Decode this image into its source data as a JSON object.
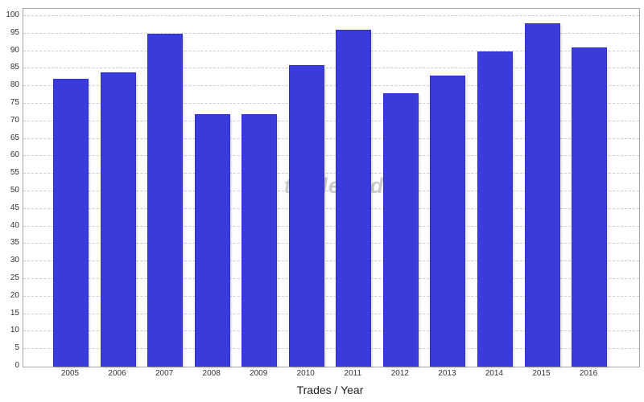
{
  "chart_data": {
    "type": "bar",
    "title": "",
    "xlabel": "Trades / Year",
    "ylabel": "",
    "categories": [
      "2005",
      "2006",
      "2007",
      "2008",
      "2009",
      "2010",
      "2011",
      "2012",
      "2013",
      "2014",
      "2015",
      "2016"
    ],
    "values": [
      82,
      84,
      95,
      72,
      72,
      86,
      96,
      78,
      83,
      90,
      98,
      91
    ],
    "ylim": [
      0,
      102
    ],
    "yticks": [
      0,
      5,
      10,
      15,
      20,
      25,
      30,
      35,
      40,
      45,
      50,
      55,
      60,
      65,
      70,
      75,
      80,
      85,
      90,
      95,
      100
    ],
    "grid": true,
    "legend": "none",
    "watermark": "tradery data",
    "colors": {
      "bar_fill": "#3b3bd9",
      "bar_border": "#3232c4",
      "gridline": "#cccccc",
      "plot_border": "#a6a6a6",
      "tick_label": "#333333",
      "axis_title": "#1f1f1f",
      "watermark": "#a8a8a8",
      "background": "#ffffff"
    }
  }
}
